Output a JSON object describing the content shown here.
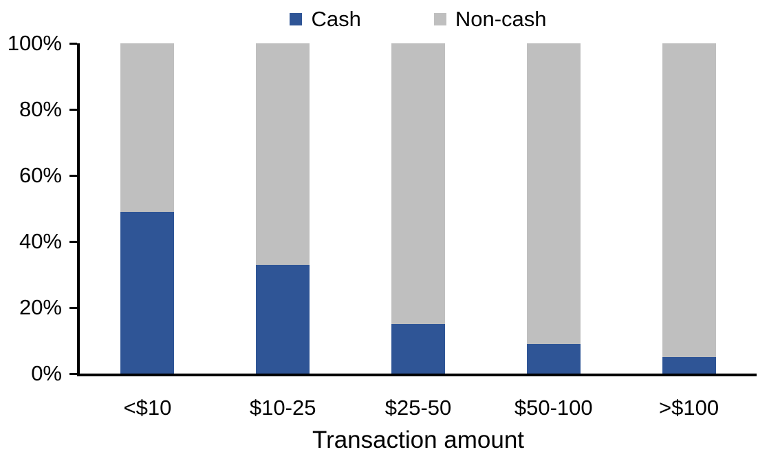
{
  "chart_data": {
    "type": "bar",
    "stacked": true,
    "stacked_mode": "percent",
    "title": "",
    "xlabel": "Transaction amount",
    "ylabel": "",
    "categories": [
      "<$10",
      "$10-25",
      "$25-50",
      "$50-100",
      ">$100"
    ],
    "series": [
      {
        "name": "Cash",
        "color": "#2F5596",
        "values": [
          49,
          33,
          15,
          9,
          5
        ]
      },
      {
        "name": "Non-cash",
        "color": "#BFBFBF",
        "values": [
          51,
          67,
          85,
          91,
          95
        ]
      }
    ],
    "y_ticks": [
      "0%",
      "20%",
      "40%",
      "60%",
      "80%",
      "100%"
    ],
    "ylim": [
      0,
      100
    ],
    "grid": false,
    "legend_position": "top",
    "axis_color": "#000000",
    "background_color": "#FFFFFF"
  }
}
